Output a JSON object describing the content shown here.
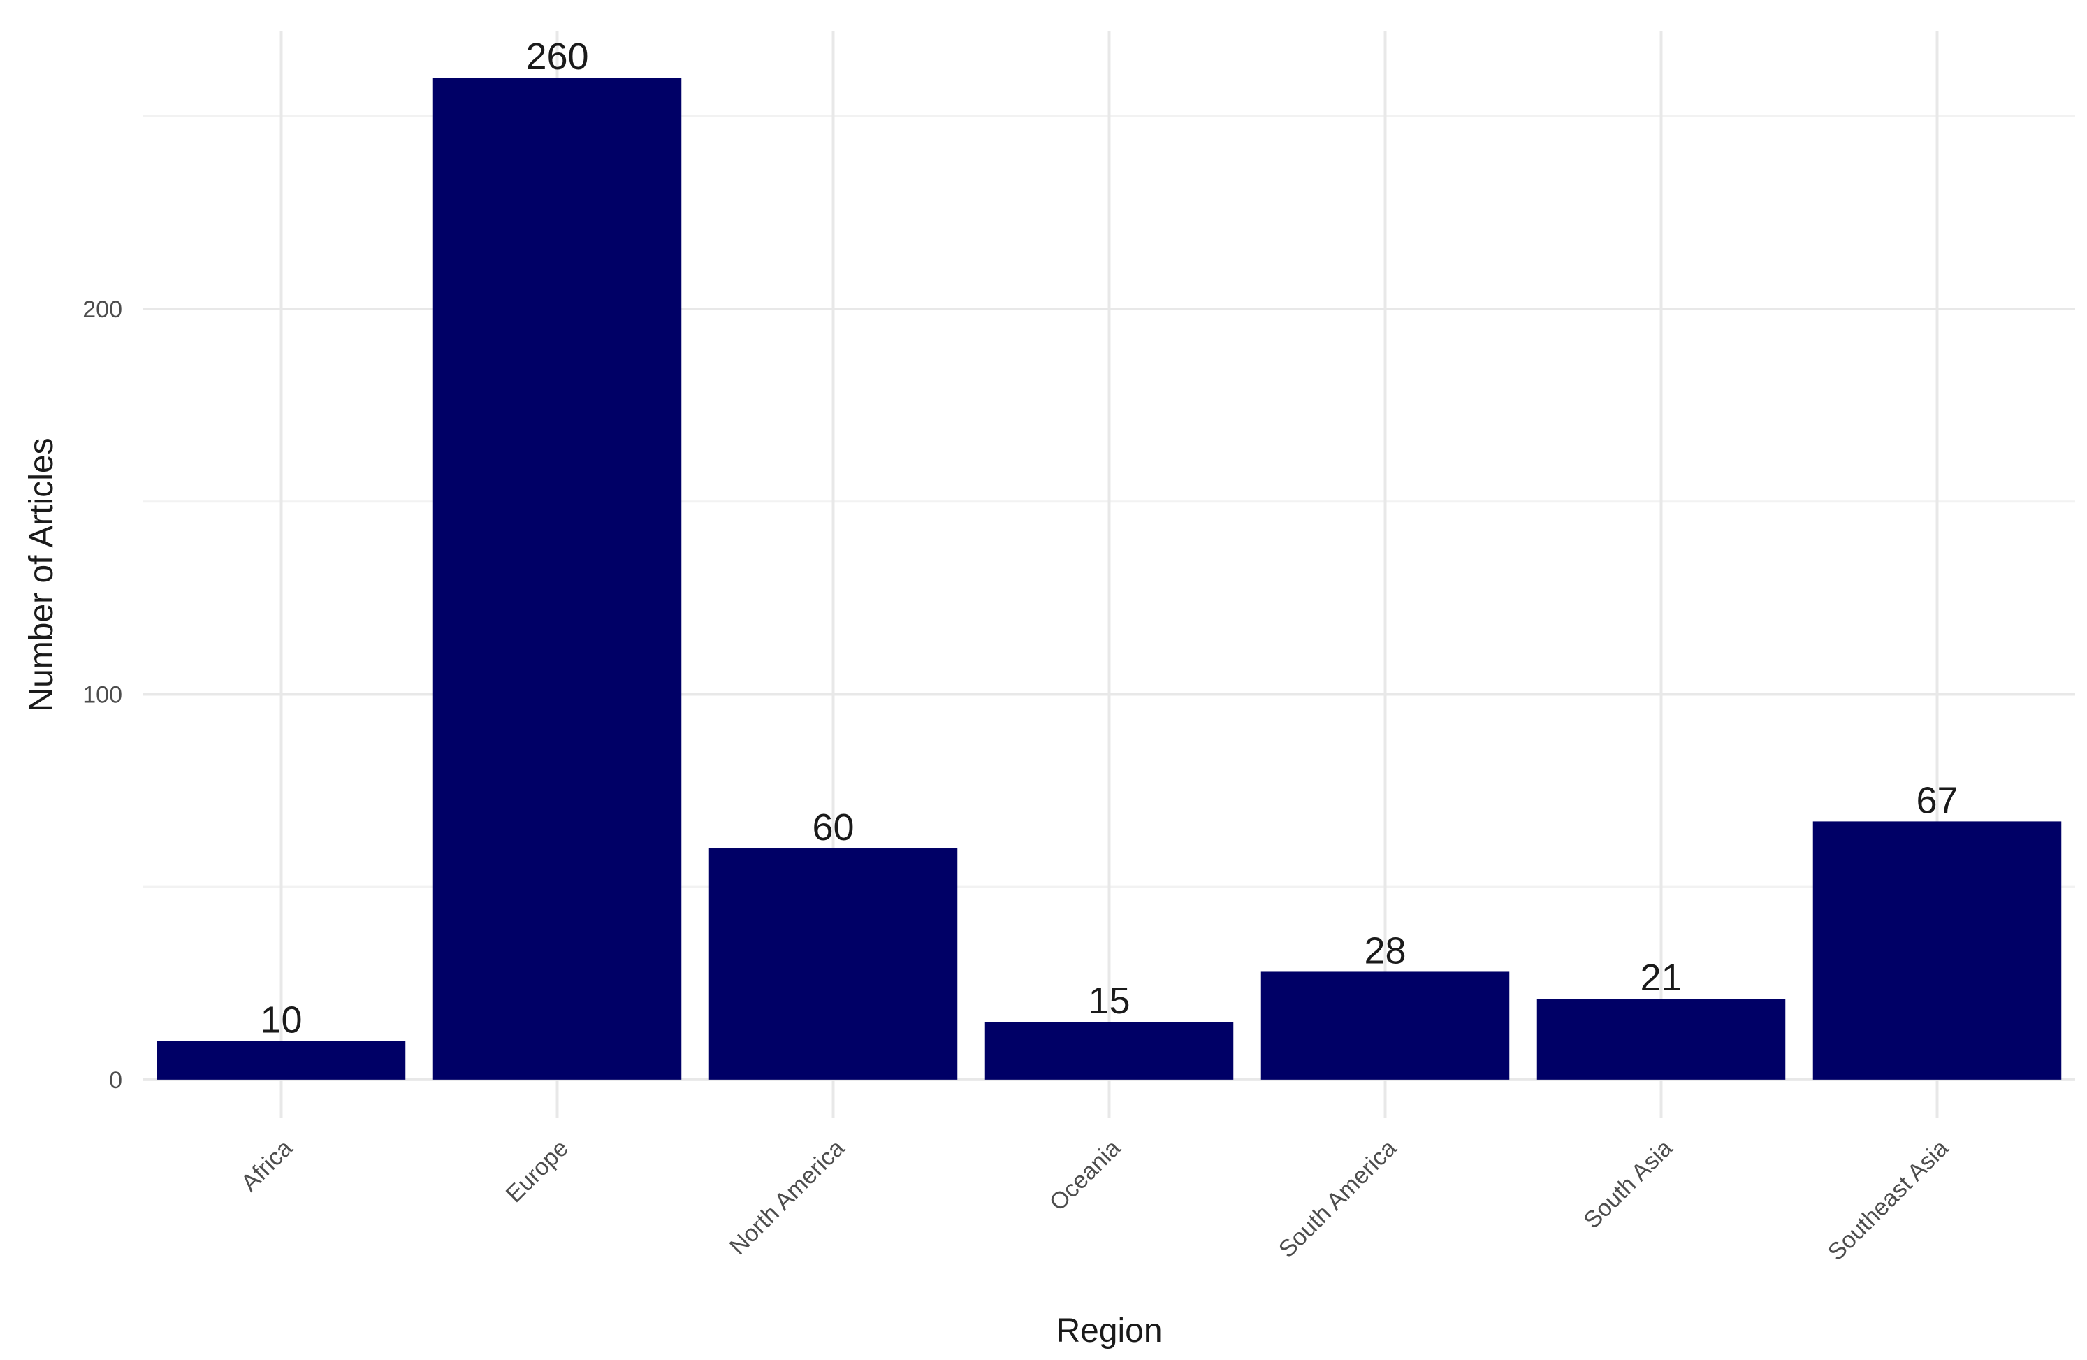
{
  "chart_data": {
    "type": "bar",
    "categories": [
      "Africa",
      "Europe",
      "North America",
      "Oceania",
      "South America",
      "South Asia",
      "Southeast Asia"
    ],
    "values": [
      10,
      260,
      60,
      15,
      28,
      21,
      67
    ],
    "data_labels": [
      "10",
      "260",
      "60",
      "15",
      "28",
      "21",
      "67"
    ],
    "xlabel": "Region",
    "ylabel": "Number of Articles",
    "yticks": [
      0,
      100,
      200
    ],
    "ytick_labels": [
      "0",
      "100",
      "200"
    ],
    "ylim": [
      -10,
      272
    ],
    "grid": true,
    "legend": "none",
    "bar_color": "#000066"
  }
}
